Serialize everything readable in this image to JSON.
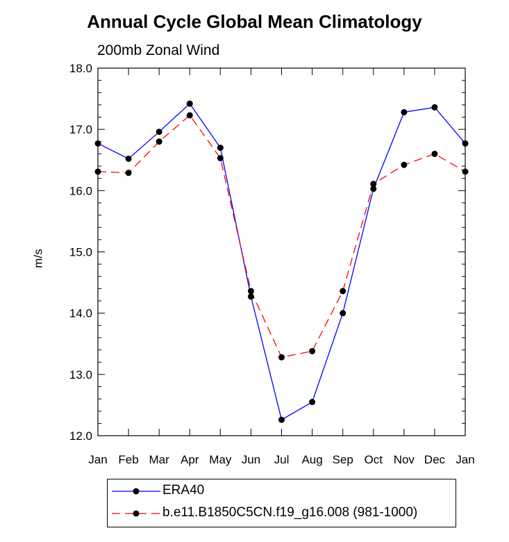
{
  "chart_data": {
    "type": "line",
    "title": "Annual Cycle Global Mean Climatology",
    "subtitle": "200mb Zonal Wind",
    "ylabel": "m/s",
    "xlabel": "",
    "categories": [
      "Jan",
      "Feb",
      "Mar",
      "Apr",
      "May",
      "Jun",
      "Jul",
      "Aug",
      "Sep",
      "Oct",
      "Nov",
      "Dec",
      "Jan"
    ],
    "ylim": [
      12.0,
      18.0
    ],
    "yticks": [
      "12.0",
      "13.0",
      "14.0",
      "15.0",
      "16.0",
      "17.0",
      "18.0"
    ],
    "grid": false,
    "legend_position": "bottom",
    "series": [
      {
        "name": "ERA40",
        "color": "#0000ff",
        "style": "solid",
        "marker": "dot",
        "values": [
          16.77,
          16.52,
          16.96,
          17.42,
          16.7,
          14.27,
          12.26,
          12.55,
          14.0,
          16.03,
          17.28,
          17.36,
          16.77
        ]
      },
      {
        "name": "b.e11.B1850C5CN.f19_g16.008 (981-1000)",
        "color": "#ff0000",
        "style": "dashed",
        "marker": "dot",
        "values": [
          16.31,
          16.29,
          16.8,
          17.23,
          16.53,
          14.36,
          13.28,
          13.38,
          14.36,
          16.11,
          16.42,
          16.6,
          16.31
        ]
      }
    ]
  }
}
